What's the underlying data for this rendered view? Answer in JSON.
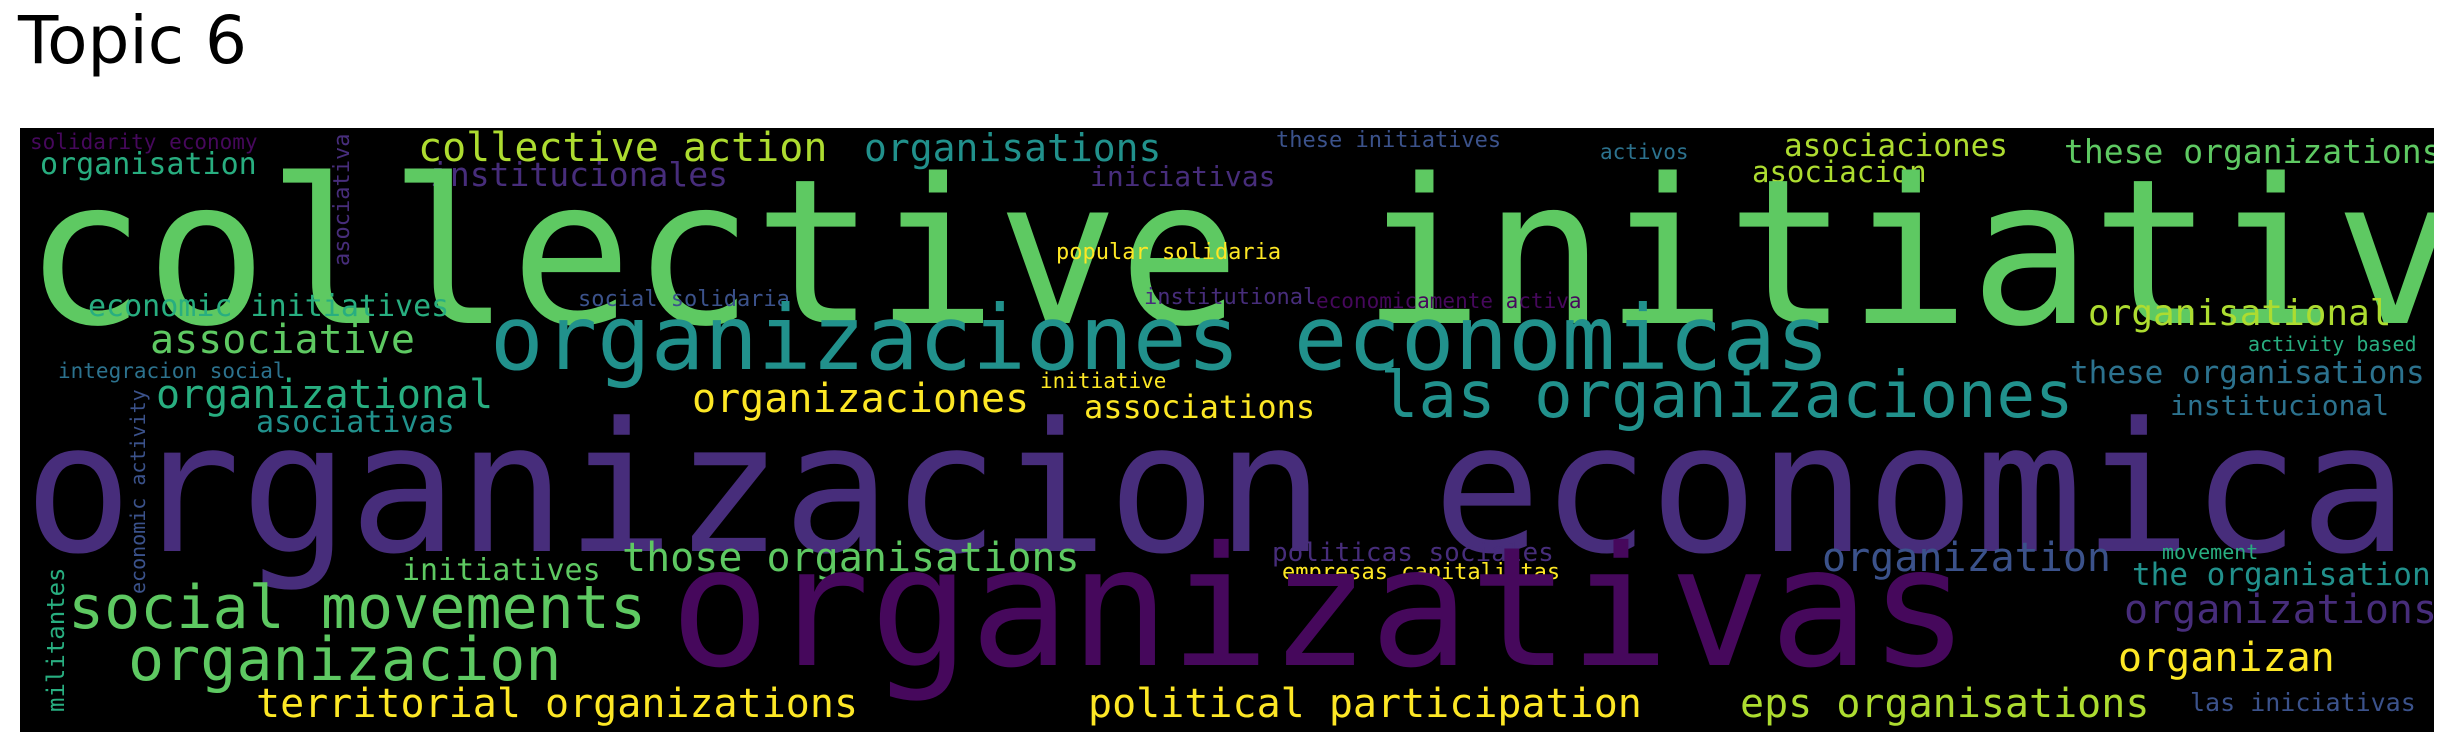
{
  "title": "Topic 6",
  "colors": {
    "dark_purple": "#46085c",
    "purple": "#472d7b",
    "indigo": "#3b528b",
    "blue": "#2c728e",
    "teal": "#21918c",
    "green_teal": "#28ae80",
    "green": "#5ec962",
    "yellow_green": "#addc30",
    "yellow": "#fde725"
  },
  "words": [
    "solidarity economy",
    "organisation",
    "asociativa",
    "collective action",
    "organisations",
    "these initiatives",
    "activos",
    "asociaciones",
    "these organizations",
    "institucionales",
    "iniciativas",
    "asociacion",
    "collective initiatives",
    "popular solidaria",
    "economic initiatives",
    "social solidaria",
    "institutional",
    "economicamente activa",
    "organisational",
    "associative",
    "organizaciones economicas",
    "activity based",
    "integracion social",
    "these organisations",
    "organizational",
    "initiative",
    "organizaciones",
    "associations",
    "las organizaciones",
    "institucional",
    "economic activity",
    "asociativas",
    "organizacion economica",
    "militantes",
    "initiatives",
    "those organisations",
    "politicas sociales",
    "organization",
    "movement",
    "empresas capitalistas",
    "the organisation",
    "organizativas",
    "social movements",
    "organizations",
    "organizacion",
    "organizan",
    "territorial organizations",
    "political participation",
    "eps organisations",
    "las iniciativas"
  ]
}
